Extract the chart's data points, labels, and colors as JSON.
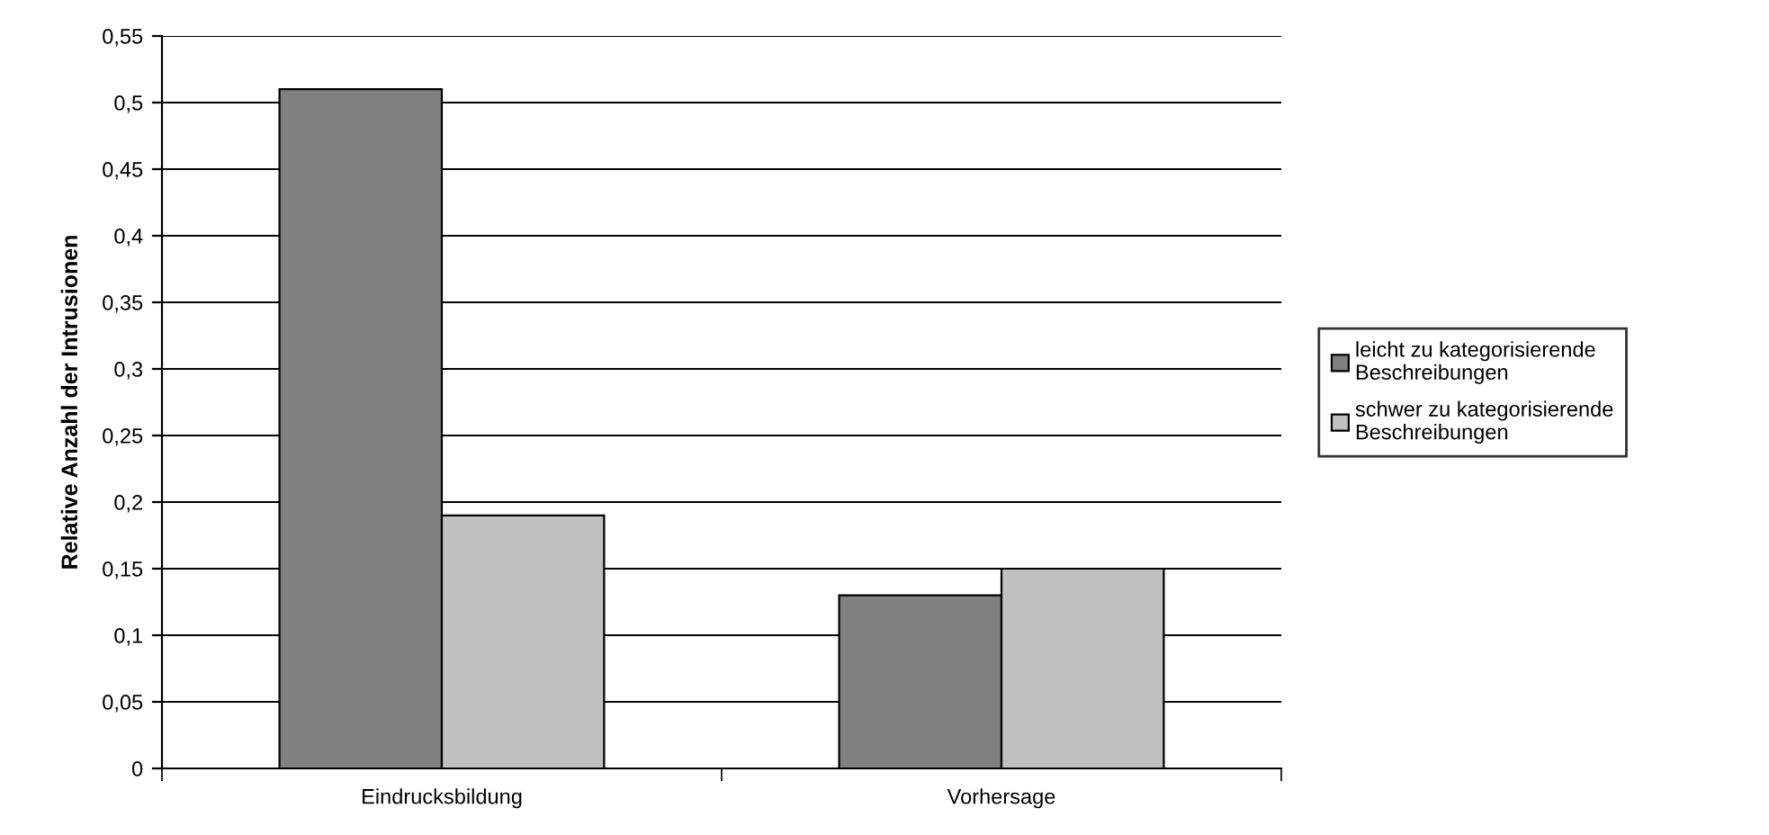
{
  "chart_data": {
    "type": "bar",
    "ylabel": "Relative Anzahl der Intrusionen",
    "categories": [
      "Eindrucksbildung",
      "Vorhersage"
    ],
    "series": [
      {
        "name": "leicht zu kategorisierende\nBeschreibungen",
        "color": "#808080",
        "values": [
          0.51,
          0.13
        ]
      },
      {
        "name": "schwer zu kategorisierende\nBeschreibungen",
        "color": "#c0c0c0",
        "values": [
          0.19,
          0.15
        ]
      }
    ],
    "ylim": [
      0,
      0.55
    ],
    "yticks": [
      0,
      {
        "value": 0.05,
        "label": "0,05"
      },
      {
        "value": 0.1,
        "label": "0,1"
      },
      {
        "value": 0.15,
        "label": "0,15"
      },
      {
        "value": 0.2,
        "label": "0,2"
      },
      {
        "value": 0.25,
        "label": "0,25"
      },
      {
        "value": 0.3,
        "label": "0,3"
      },
      {
        "value": 0.35,
        "label": "0,35"
      },
      {
        "value": 0.4,
        "label": "0,4"
      },
      {
        "value": 0.45,
        "label": "0,45"
      },
      {
        "value": 0.5,
        "label": "0,5"
      },
      {
        "value": 0.55,
        "label": "0,55"
      }
    ],
    "grid": "y",
    "legend": "right"
  }
}
